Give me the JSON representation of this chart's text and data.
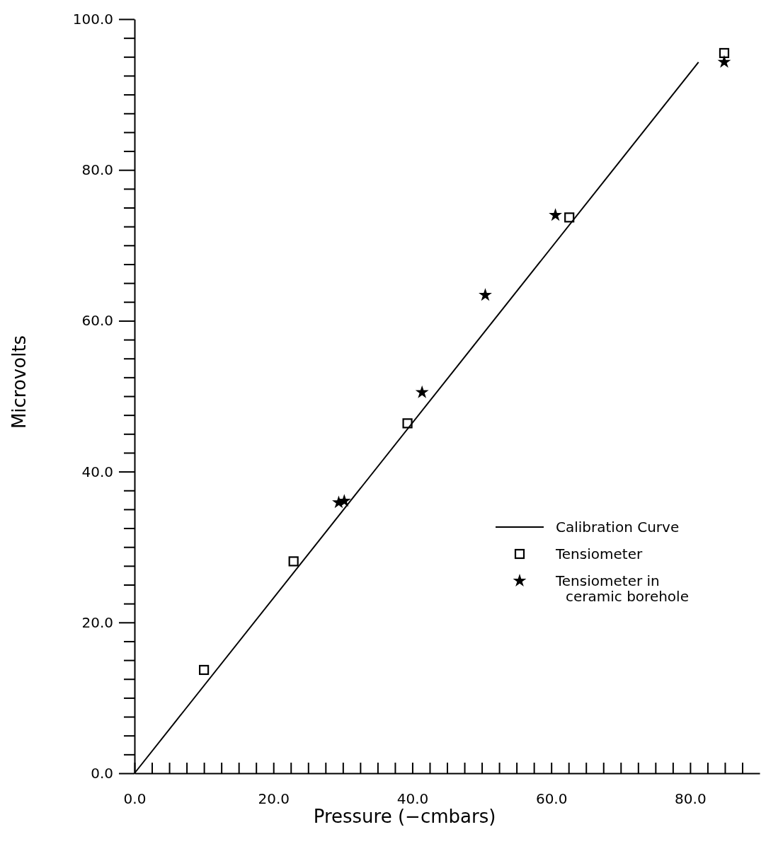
{
  "chart_data": {
    "type": "scatter",
    "xlabel": "Pressure (−cmbars)",
    "ylabel": "Microvolts",
    "xlim": [
      0,
      90
    ],
    "ylim": [
      0,
      100
    ],
    "xticks": [
      {
        "value": 0,
        "label": "0.0"
      },
      {
        "value": 2.5,
        "label": null
      },
      {
        "value": 5,
        "label": null
      },
      {
        "value": 7.5,
        "label": null
      },
      {
        "value": 10,
        "label": null
      },
      {
        "value": 12.5,
        "label": null
      },
      {
        "value": 15,
        "label": null
      },
      {
        "value": 17.5,
        "label": null
      },
      {
        "value": 20,
        "label": "20.0"
      },
      {
        "value": 22.5,
        "label": null
      },
      {
        "value": 25,
        "label": null
      },
      {
        "value": 27.5,
        "label": null
      },
      {
        "value": 30,
        "label": null
      },
      {
        "value": 32.5,
        "label": null
      },
      {
        "value": 35,
        "label": null
      },
      {
        "value": 37.5,
        "label": null
      },
      {
        "value": 40,
        "label": "40.0"
      },
      {
        "value": 42.5,
        "label": null
      },
      {
        "value": 45,
        "label": null
      },
      {
        "value": 47.5,
        "label": null
      },
      {
        "value": 50,
        "label": null
      },
      {
        "value": 52.5,
        "label": null
      },
      {
        "value": 55,
        "label": null
      },
      {
        "value": 57.5,
        "label": null
      },
      {
        "value": 60,
        "label": "60.0"
      },
      {
        "value": 62.5,
        "label": null
      },
      {
        "value": 65,
        "label": null
      },
      {
        "value": 67.5,
        "label": null
      },
      {
        "value": 70,
        "label": null
      },
      {
        "value": 72.5,
        "label": null
      },
      {
        "value": 75,
        "label": null
      },
      {
        "value": 77.5,
        "label": null
      },
      {
        "value": 80,
        "label": "80.0"
      },
      {
        "value": 82.5,
        "label": null
      },
      {
        "value": 85,
        "label": null
      },
      {
        "value": 87.5,
        "label": null
      }
    ],
    "yticks": [
      {
        "value": 0,
        "label": "0.0"
      },
      {
        "value": 2.5,
        "label": null
      },
      {
        "value": 5,
        "label": null
      },
      {
        "value": 7.5,
        "label": null
      },
      {
        "value": 10,
        "label": null
      },
      {
        "value": 12.5,
        "label": null
      },
      {
        "value": 15,
        "label": null
      },
      {
        "value": 17.5,
        "label": null
      },
      {
        "value": 20,
        "label": "20.0"
      },
      {
        "value": 22.5,
        "label": null
      },
      {
        "value": 25,
        "label": null
      },
      {
        "value": 27.5,
        "label": null
      },
      {
        "value": 30,
        "label": null
      },
      {
        "value": 32.5,
        "label": null
      },
      {
        "value": 35,
        "label": null
      },
      {
        "value": 37.5,
        "label": null
      },
      {
        "value": 40,
        "label": "40.0"
      },
      {
        "value": 42.5,
        "label": null
      },
      {
        "value": 45,
        "label": null
      },
      {
        "value": 47.5,
        "label": null
      },
      {
        "value": 50,
        "label": null
      },
      {
        "value": 52.5,
        "label": null
      },
      {
        "value": 55,
        "label": null
      },
      {
        "value": 57.5,
        "label": null
      },
      {
        "value": 60,
        "label": "60.0"
      },
      {
        "value": 62.5,
        "label": null
      },
      {
        "value": 65,
        "label": null
      },
      {
        "value": 67.5,
        "label": null
      },
      {
        "value": 70,
        "label": null
      },
      {
        "value": 72.5,
        "label": null
      },
      {
        "value": 75,
        "label": null
      },
      {
        "value": 77.5,
        "label": null
      },
      {
        "value": 80,
        "label": "80.0"
      },
      {
        "value": 82.5,
        "label": null
      },
      {
        "value": 85,
        "label": null
      },
      {
        "value": 87.5,
        "label": null
      },
      {
        "value": 90,
        "label": null
      },
      {
        "value": 92.5,
        "label": null
      },
      {
        "value": 95,
        "label": null
      },
      {
        "value": 97.5,
        "label": null
      },
      {
        "value": 100,
        "label": "100.0"
      }
    ],
    "grid": false,
    "legend": "right",
    "series": [
      {
        "name": "Calibration Curve",
        "type": "line",
        "color": "#000000",
        "marker": "none",
        "line_style": "solid",
        "x": [
          0,
          81.2
        ],
        "values": [
          0,
          94.3
        ]
      },
      {
        "name": "Tensiometer",
        "color": "#000000",
        "marker": "square",
        "x": [
          10.0,
          22.9,
          39.3,
          62.6,
          84.9
        ],
        "values": [
          13.7,
          28.1,
          46.4,
          73.7,
          95.5
        ]
      },
      {
        "name": "Tensiometer in ceramic borehole",
        "color": "#000000",
        "marker": "star",
        "x": [
          29.4,
          30.2,
          41.4,
          50.5,
          60.6,
          84.9
        ],
        "values": [
          35.9,
          36.1,
          50.5,
          63.4,
          74.0,
          94.3
        ]
      }
    ]
  }
}
